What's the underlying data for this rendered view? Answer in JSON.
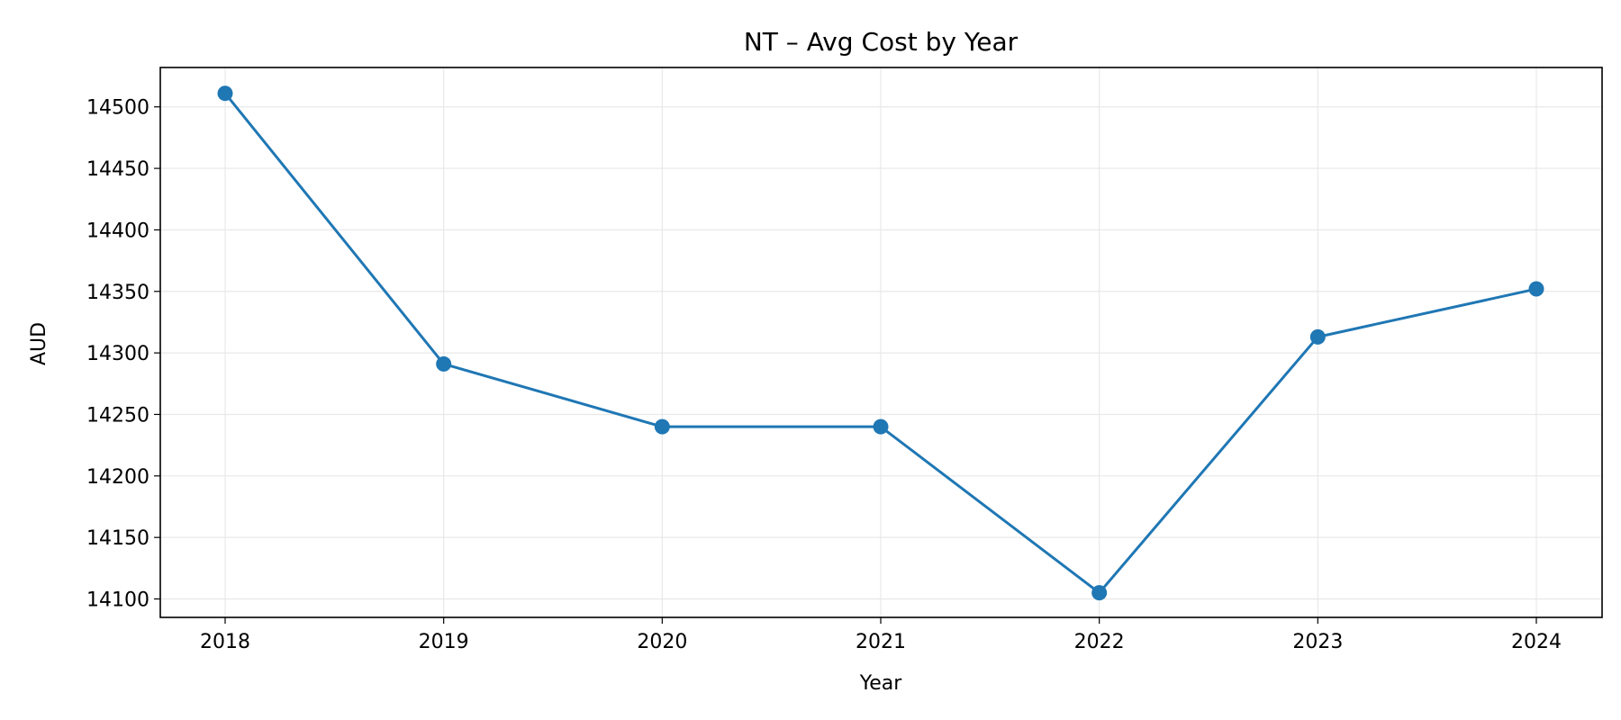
{
  "chart_data": {
    "type": "line",
    "title": "NT – Avg Cost by Year",
    "xlabel": "Year",
    "ylabel": "AUD",
    "x": [
      "2018",
      "2019",
      "2020",
      "2021",
      "2022",
      "2023",
      "2024"
    ],
    "series": [
      {
        "values": [
          14511,
          14291,
          14240,
          14240,
          14105,
          14313,
          14352
        ]
      }
    ],
    "yticks": [
      14100,
      14150,
      14200,
      14250,
      14300,
      14350,
      14400,
      14450,
      14500
    ],
    "ylim": [
      14085,
      14532
    ],
    "grid": true,
    "colors": {
      "line": "#1f77b4",
      "marker": "#1f77b4"
    }
  }
}
